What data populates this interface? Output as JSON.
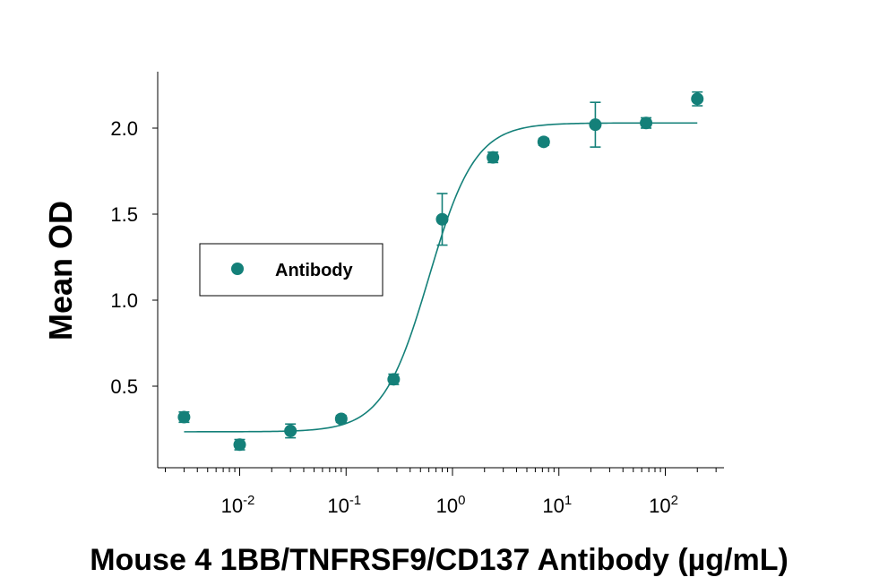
{
  "chart_data": {
    "type": "scatter",
    "title": "",
    "xlabel": "Mouse 4 1BB/TNFRSF9/CD137 Antibody (µg/mL)",
    "ylabel": "Mean OD",
    "x_scale": "log",
    "xlim": [
      0.0015,
      600
    ],
    "ylim": [
      0.05,
      2.32
    ],
    "x_ticks": [
      {
        "base": "10",
        "exp": "-2",
        "value": 0.01
      },
      {
        "base": "10",
        "exp": "-1",
        "value": 0.1
      },
      {
        "base": "10",
        "exp": "0",
        "value": 1
      },
      {
        "base": "10",
        "exp": "1",
        "value": 10
      },
      {
        "base": "10",
        "exp": "2",
        "value": 100
      }
    ],
    "y_ticks": [
      {
        "label": "0.5",
        "value": 0.5
      },
      {
        "label": "1.0",
        "value": 1.0
      },
      {
        "label": "1.5",
        "value": 1.5
      },
      {
        "label": "2.0",
        "value": 2.0
      }
    ],
    "grid": false,
    "legend_position": "left-middle",
    "color": "#148079",
    "series": [
      {
        "name": "Antibody",
        "points": [
          {
            "x": 0.003,
            "y": 0.32,
            "err": 0.03
          },
          {
            "x": 0.01,
            "y": 0.16,
            "err": 0.03
          },
          {
            "x": 0.03,
            "y": 0.24,
            "err": 0.04
          },
          {
            "x": 0.09,
            "y": 0.31,
            "err": 0.02
          },
          {
            "x": 0.28,
            "y": 0.54,
            "err": 0.03
          },
          {
            "x": 0.8,
            "y": 1.47,
            "err": 0.15
          },
          {
            "x": 2.4,
            "y": 1.83,
            "err": 0.03
          },
          {
            "x": 7.2,
            "y": 1.92,
            "err": 0.02
          },
          {
            "x": 22,
            "y": 2.02,
            "err": 0.13
          },
          {
            "x": 66,
            "y": 2.03,
            "err": 0.03
          },
          {
            "x": 200,
            "y": 2.17,
            "err": 0.04
          }
        ],
        "fit": {
          "bottom": 0.235,
          "top": 2.03,
          "ec50": 0.6,
          "hill": 2.0,
          "x_range": [
            0.003,
            200
          ]
        }
      }
    ]
  }
}
